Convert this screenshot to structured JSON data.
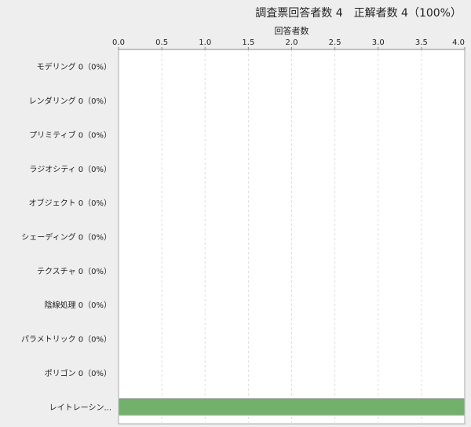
{
  "chart_data": {
    "type": "bar",
    "orientation": "horizontal",
    "title": "調査票回答者数 4　正解者数 4（100%）",
    "xlabel": "回答者数",
    "ylabel": "",
    "xlim": [
      0,
      4.0
    ],
    "x_ticks": [
      "0.0",
      "0.5",
      "1.0",
      "1.5",
      "2.0",
      "2.5",
      "3.0",
      "3.5",
      "4.0"
    ],
    "axis_position": "top",
    "grid": true,
    "categories": [
      "モデリング 0（0%）",
      "レンダリング 0（0%）",
      "プリミティブ 0（0%）",
      "ラジオシティ 0（0%）",
      "オブジェクト 0（0%）",
      "シェーディング 0（0%）",
      "テクスチャ 0（0%）",
      "陰線処理 0（0%）",
      "パラメトリック 0（0%）",
      "ポリゴン 0（0%）",
      "レイトレーシン..."
    ],
    "values": [
      0,
      0,
      0,
      0,
      0,
      0,
      0,
      0,
      0,
      0,
      4
    ],
    "bar_color": "#73b06b"
  }
}
